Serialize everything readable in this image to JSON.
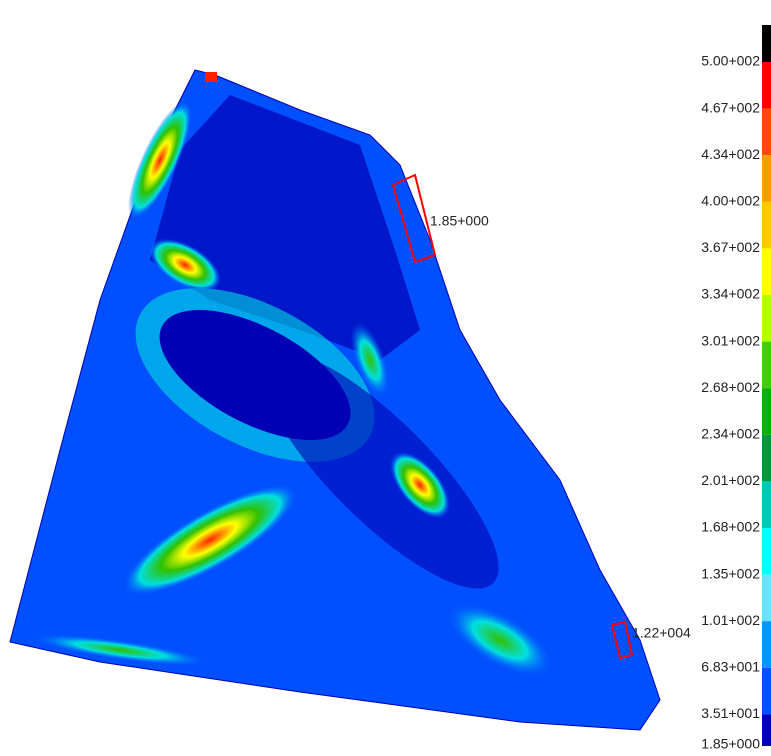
{
  "legend": {
    "labels": [
      "5.00+002",
      "4.67+002",
      "4.34+002",
      "4.00+002",
      "3.67+002",
      "3.34+002",
      "3.01+002",
      "2.68+002",
      "2.34+002",
      "2.01+002",
      "1.68+002",
      "1.35+002",
      "1.01+002",
      "6.83+001",
      "3.51+001",
      "1.85+000"
    ],
    "colors": [
      "#000000",
      "#ff0000",
      "#ff4a00",
      "#ff9a00",
      "#ffc800",
      "#ffff00",
      "#b4ff00",
      "#3cd200",
      "#00b400",
      "#00963c",
      "#00c8b4",
      "#00ffff",
      "#64e6ff",
      "#0096ff",
      "#0050ff",
      "#0000b4"
    ]
  },
  "annotations": [
    {
      "label": "1.85+000"
    },
    {
      "label": "1.22+004"
    }
  ]
}
